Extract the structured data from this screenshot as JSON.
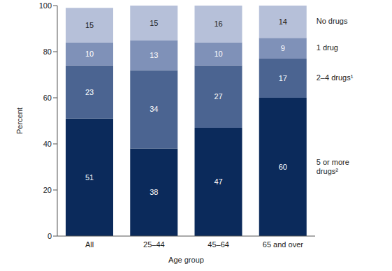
{
  "chart_data": {
    "type": "bar",
    "stacked": true,
    "data_labels": true,
    "legend": "right",
    "x_label": "Age group",
    "y_label": "Percent",
    "categories": [
      "All",
      "25–44",
      "45–64",
      "65 and over"
    ],
    "series": [
      {
        "name": "5 or more drugs²",
        "color": "#0b2a5b",
        "values": [
          51,
          38,
          47,
          60
        ]
      },
      {
        "name": "2–4 drugs¹",
        "color": "#4b6491",
        "values": [
          23,
          34,
          27,
          17
        ]
      },
      {
        "name": "1 drug",
        "color": "#7f91b8",
        "values": [
          10,
          13,
          10,
          9
        ]
      },
      {
        "name": "No drugs",
        "color": "#b6c0d9",
        "values": [
          15,
          15,
          16,
          14
        ]
      }
    ],
    "ylim": [
      0,
      100
    ],
    "yticks": [
      0,
      20,
      40,
      60,
      80,
      100
    ]
  }
}
